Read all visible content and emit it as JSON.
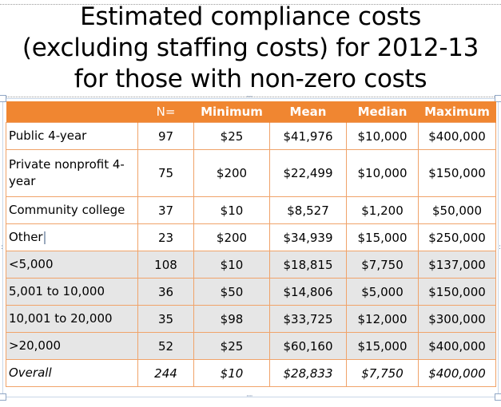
{
  "title": {
    "line1": "Estimated compliance costs",
    "line2": "(excluding staffing costs) for 2012-13",
    "line3": "for those with non-zero costs"
  },
  "table": {
    "headers": [
      "",
      "N=",
      "Minimum",
      "Mean",
      "Median",
      "Maximum"
    ],
    "rows": [
      {
        "label": "Public 4-year",
        "n": "97",
        "min": "$25",
        "mean": "$41,976",
        "median": "$10,000",
        "max": "$400,000"
      },
      {
        "label": "Private nonprofit 4-year",
        "n": "75",
        "min": "$200",
        "mean": "$22,499",
        "median": "$10,000",
        "max": "$150,000"
      },
      {
        "label": "Community college",
        "n": "37",
        "min": "$10",
        "mean": "$8,527",
        "median": "$1,200",
        "max": "$50,000"
      },
      {
        "label": "Other",
        "n": "23",
        "min": "$200",
        "mean": "$34,939",
        "median": "$15,000",
        "max": "$250,000"
      },
      {
        "label": "<5,000",
        "n": "108",
        "min": "$10",
        "mean": "$18,815",
        "median": "$7,750",
        "max": "$137,000"
      },
      {
        "label": "5,001 to 10,000",
        "n": "36",
        "min": "$50",
        "mean": "$14,806",
        "median": "$5,000",
        "max": "$150,000"
      },
      {
        "label": "10,001 to 20,000",
        "n": "35",
        "min": "$98",
        "mean": "$33,725",
        "median": "$12,000",
        "max": "$300,000"
      },
      {
        "label": ">20,000",
        "n": "52",
        "min": "$25",
        "mean": "$60,160",
        "median": "$15,000",
        "max": "$400,000"
      },
      {
        "label": "Overall",
        "n": "244",
        "min": "$10",
        "mean": "$28,833",
        "median": "$7,750",
        "max": "$400,000"
      }
    ]
  },
  "colors": {
    "header_bg": "#f08631",
    "row_border": "#f0a36a",
    "shaded_row": "#e6e6e6"
  }
}
